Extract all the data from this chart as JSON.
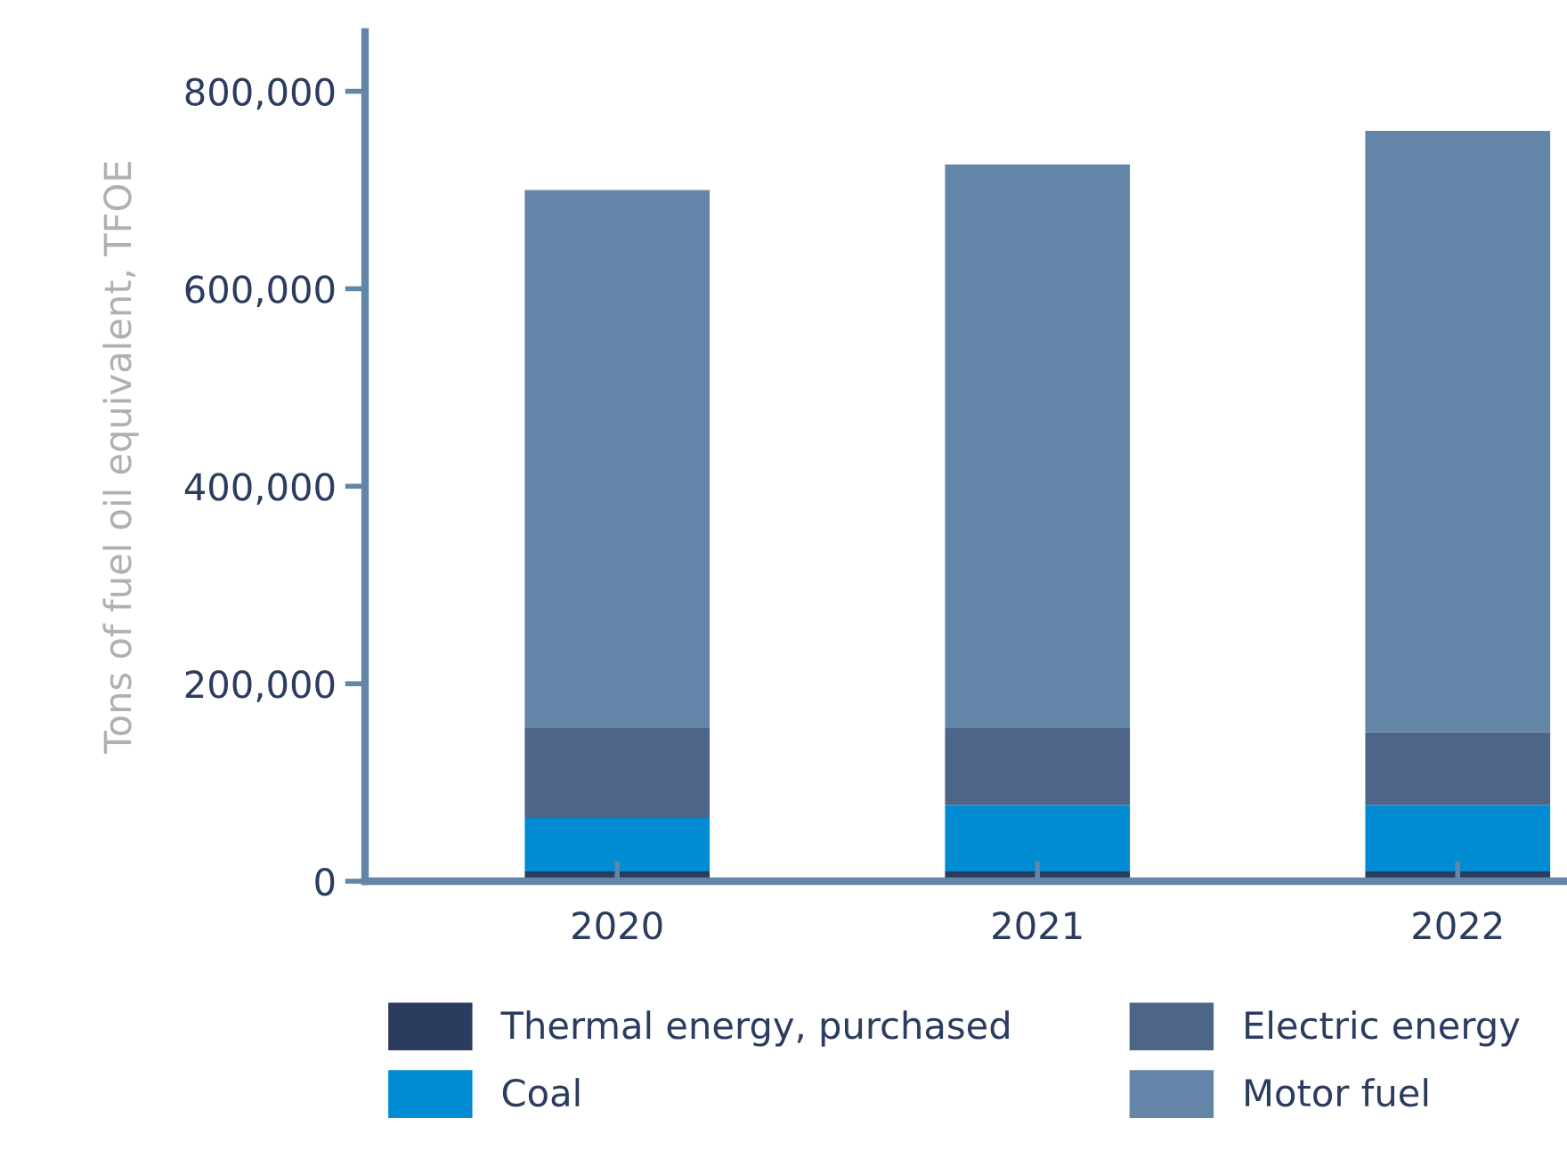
{
  "chart_data": {
    "type": "bar",
    "stacked": true,
    "ylabel": "Tons of fuel oil equivalent, TFOE",
    "categories": [
      "2020",
      "2021",
      "2022"
    ],
    "series": [
      {
        "name": "Thermal energy, purchased",
        "color": "#2b3c5e",
        "values": [
          10000,
          10000,
          10000
        ]
      },
      {
        "name": "Coal",
        "color": "#008bd2",
        "values": [
          54000,
          67000,
          67000
        ]
      },
      {
        "name": "Electric energy",
        "color": "#4c6588",
        "values": [
          91000,
          78000,
          74000
        ]
      },
      {
        "name": "Motor fuel",
        "color": "#6285a8",
        "values": [
          545000,
          571000,
          609000
        ]
      }
    ],
    "ylim": [
      0,
      860000
    ],
    "yticks": [
      0,
      {
        "value": 200000,
        "label": "200,000"
      },
      {
        "value": 400000,
        "label": "400,000"
      },
      {
        "value": 600000,
        "label": "600,000"
      },
      {
        "value": 800000,
        "label": "800,000"
      }
    ],
    "grid": false,
    "legend": "bottom"
  }
}
